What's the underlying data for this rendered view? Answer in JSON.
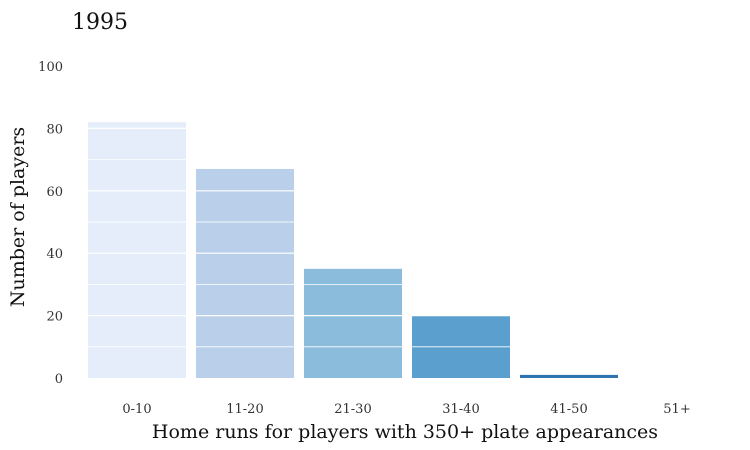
{
  "chart_data": {
    "type": "bar",
    "title": "1995",
    "xlabel": "Home runs for players with 350+ plate appearances",
    "ylabel": "Number of players",
    "categories": [
      "0-10",
      "11-20",
      "21-30",
      "31-40",
      "41-50",
      "51+"
    ],
    "values": [
      82,
      67,
      35,
      20,
      1,
      0
    ],
    "ylim": [
      0,
      100
    ],
    "yticks": [
      0,
      20,
      40,
      60,
      80,
      100
    ],
    "grid": "horizontal white lines over bars",
    "legend": "none",
    "colors": [
      "#e6edfa",
      "#bad0ea",
      "#8cbcdb",
      "#5a9fcd",
      "#2f73b0",
      "#1c5a99"
    ]
  }
}
